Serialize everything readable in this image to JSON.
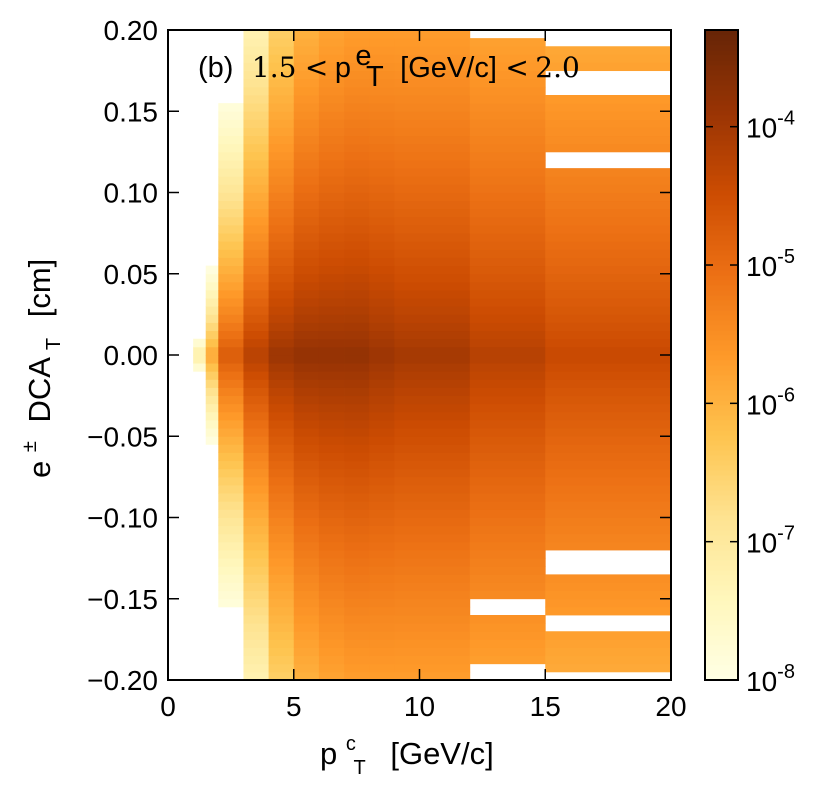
{
  "chart_data": {
    "type": "heatmap",
    "panel_label": "(b)",
    "annotation": {
      "low": "1.5",
      "lt": "<",
      "var": "p",
      "var_sup": "e",
      "var_sub": "T",
      "unit": "[GeV/c]",
      "high": "2.0"
    },
    "xlabel": {
      "main": "p",
      "sup": "c",
      "sub": "T",
      "unit": "[GeV/c]"
    },
    "ylabel": {
      "main": "e",
      "sup": "±",
      "mid": "DCA",
      "sub": "T",
      "unit": "[cm]"
    },
    "xlim": [
      0,
      20
    ],
    "ylim": [
      -0.2,
      0.2
    ],
    "x_ticks": [
      0,
      5,
      10,
      15,
      20
    ],
    "x_tick_labels": [
      "0",
      "5",
      "10",
      "15",
      "20"
    ],
    "y_ticks": [
      0.2,
      0.15,
      0.1,
      0.05,
      0.0,
      -0.05,
      -0.1,
      -0.15,
      -0.2
    ],
    "y_tick_labels": [
      "0.20",
      "0.15",
      "0.10",
      "0.05",
      "0.00",
      "−0.05",
      "−0.10",
      "−0.15",
      "−0.20"
    ],
    "colorbar": {
      "scale": "log",
      "range": [
        1e-08,
        0.0005
      ],
      "ticks": [
        1e-08,
        1e-07,
        1e-06,
        1e-05,
        0.0001
      ],
      "tick_labels": [
        {
          "base": "10",
          "exp": "-8"
        },
        {
          "base": "10",
          "exp": "-7"
        },
        {
          "base": "10",
          "exp": "-6"
        },
        {
          "base": "10",
          "exp": "-5"
        },
        {
          "base": "10",
          "exp": "-4"
        }
      ]
    },
    "x_bin_edges": [
      0,
      0.5,
      1,
      1.5,
      2,
      3,
      4,
      5,
      6,
      7,
      8,
      9,
      12,
      15,
      20
    ],
    "column_width": [
      0.01,
      0.02,
      0.05,
      0.1,
      0.18,
      0.24,
      0.3,
      0.36,
      0.4,
      0.42,
      0.45,
      0.48,
      0.52,
      0.55
    ],
    "column_peak_log10": [
      -8.9,
      -7.8,
      -7.0,
      -5.8,
      -4.7,
      -4.2,
      -3.9,
      -3.8,
      -3.8,
      -3.8,
      -3.9,
      -4.0,
      -4.2,
      -4.4
    ],
    "column_extent": [
      0.0,
      0.016,
      0.03,
      0.1,
      0.2,
      0.2,
      0.2,
      0.2,
      0.2,
      0.2,
      0.2,
      0.2,
      0.2,
      0.2
    ],
    "empty_bands": [
      {
        "x_from": 12,
        "x_to": 15,
        "y_from": 0.195,
        "y_to": 0.2
      },
      {
        "x_from": 12,
        "x_to": 15,
        "y_from": -0.158,
        "y_to": -0.151
      },
      {
        "x_from": 12,
        "x_to": 15,
        "y_from": -0.2,
        "y_to": -0.19
      },
      {
        "x_from": 15,
        "x_to": 20,
        "y_from": 0.19,
        "y_to": 0.2
      },
      {
        "x_from": 15,
        "x_to": 20,
        "y_from": 0.16,
        "y_to": 0.175
      },
      {
        "x_from": 15,
        "x_to": 20,
        "y_from": 0.115,
        "y_to": 0.125
      },
      {
        "x_from": 15,
        "x_to": 20,
        "y_from": -0.135,
        "y_to": -0.119
      },
      {
        "x_from": 15,
        "x_to": 20,
        "y_from": -0.168,
        "y_to": -0.16
      },
      {
        "x_from": 15,
        "x_to": 20,
        "y_from": -0.2,
        "y_to": -0.194
      }
    ]
  }
}
